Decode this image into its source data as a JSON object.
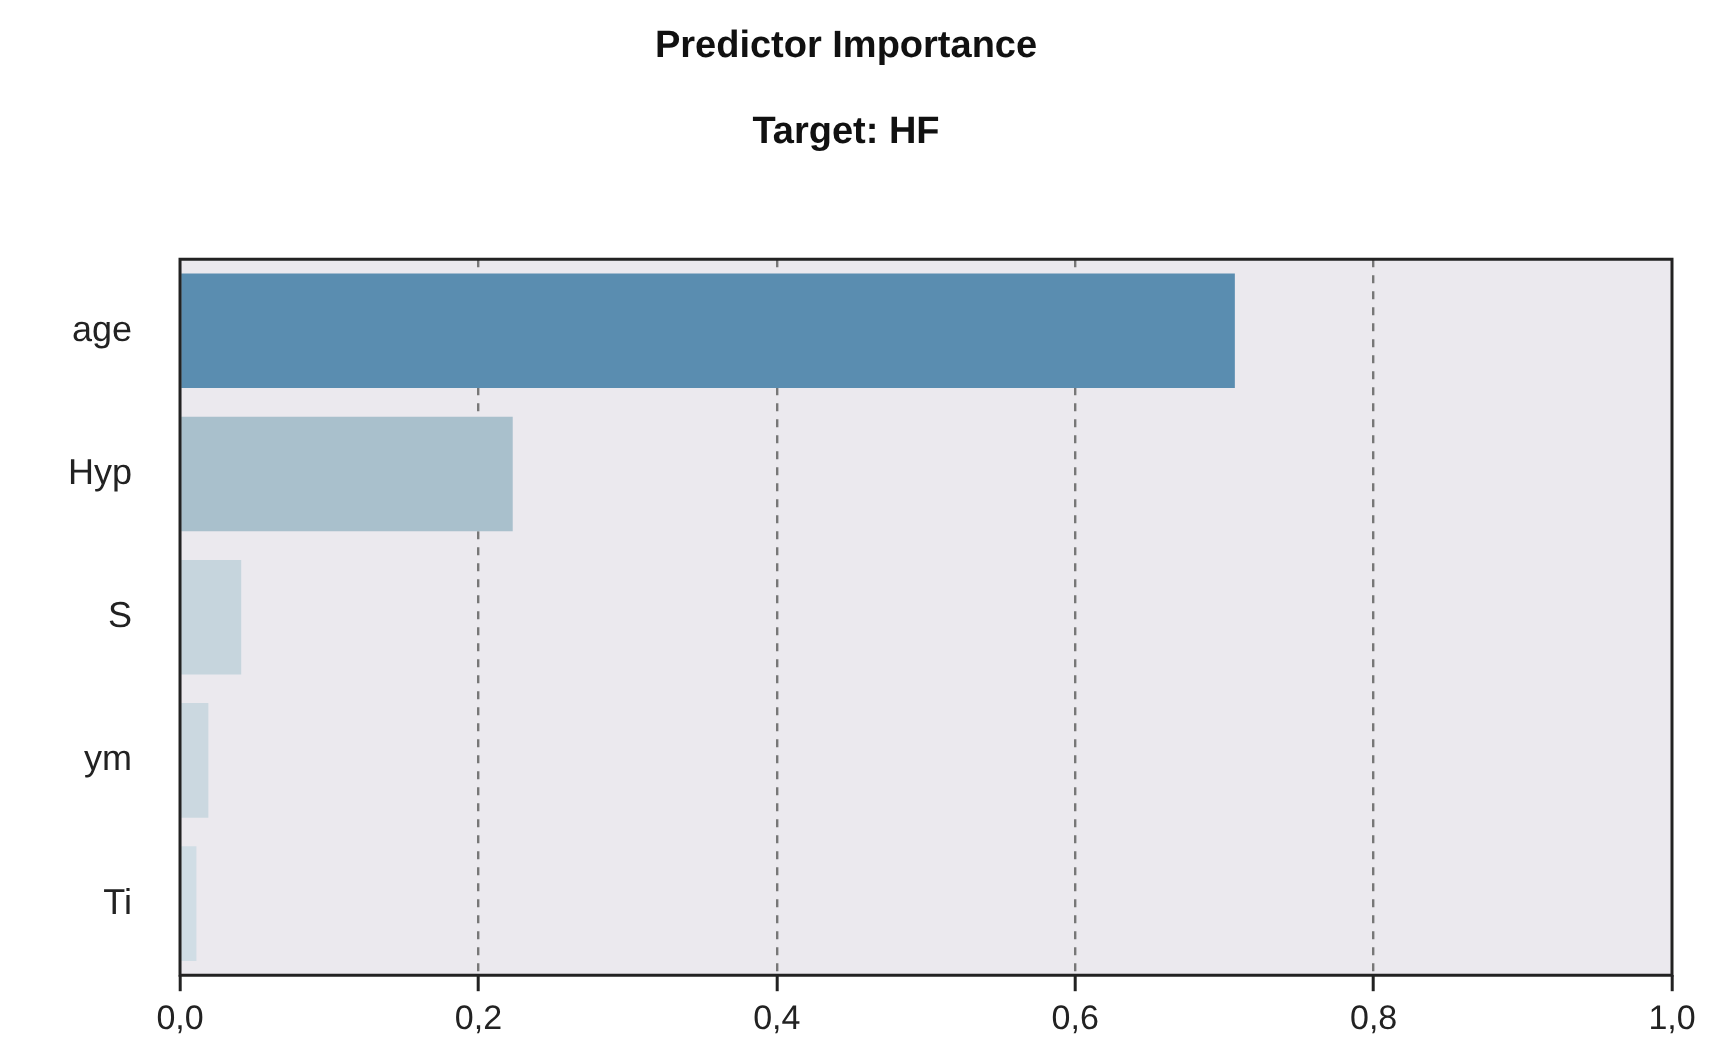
{
  "chart_data": {
    "type": "bar",
    "orientation": "horizontal",
    "title": "Predictor Importance",
    "subtitle": "Target: HF",
    "categories": [
      "age",
      "Hyp",
      "S",
      "ym",
      "Ti"
    ],
    "values": [
      0.707,
      0.223,
      0.041,
      0.019,
      0.011
    ],
    "colors": [
      "#5a8db0",
      "#a9c0cc",
      "#c6d5dd",
      "#cbd8e0",
      "#d0dde5"
    ],
    "xlim": [
      0,
      1
    ],
    "xticks": [
      {
        "value": 0,
        "label": "0,0"
      },
      {
        "value": 0.2,
        "label": "0,2"
      },
      {
        "value": 0.4,
        "label": "0,4"
      },
      {
        "value": 0.6,
        "label": "0,6"
      },
      {
        "value": 0.8,
        "label": "0,8"
      },
      {
        "value": 1,
        "label": "1,0"
      }
    ],
    "grid": "x",
    "line_style": "dashed",
    "legend": false
  }
}
